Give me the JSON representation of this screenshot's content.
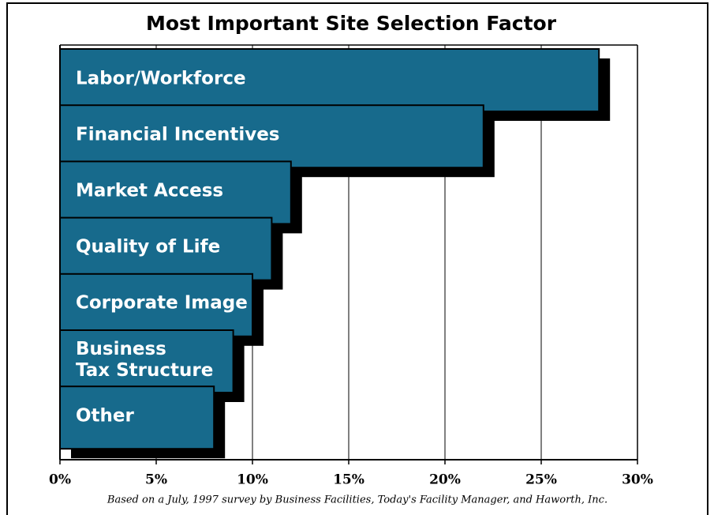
{
  "chart_data": {
    "type": "bar",
    "orientation": "horizontal",
    "title": "Most Important Site Selection Factor",
    "categories": [
      "Labor/Workforce",
      "Financial Incentives",
      "Market Access",
      "Quality of Life",
      "Corporate Image",
      "Business\nTax Structure",
      "Other"
    ],
    "values": [
      28,
      22,
      12,
      11,
      10,
      9,
      8
    ],
    "color": "#176a8c",
    "shadow_color": "#000000",
    "xlim": [
      0,
      30
    ],
    "xticks": [
      {
        "value": 0,
        "label": "0%"
      },
      {
        "value": 5,
        "label": "5%"
      },
      {
        "value": 10,
        "label": "10%"
      },
      {
        "value": 15,
        "label": "15%"
      },
      {
        "value": 20,
        "label": "20%"
      },
      {
        "value": 25,
        "label": "25%"
      },
      {
        "value": 30,
        "label": "30%"
      }
    ],
    "grid": true,
    "note": "Based on a July, 1997 survey by Business Facilities, Today's Facility Manager, and Haworth, Inc."
  }
}
